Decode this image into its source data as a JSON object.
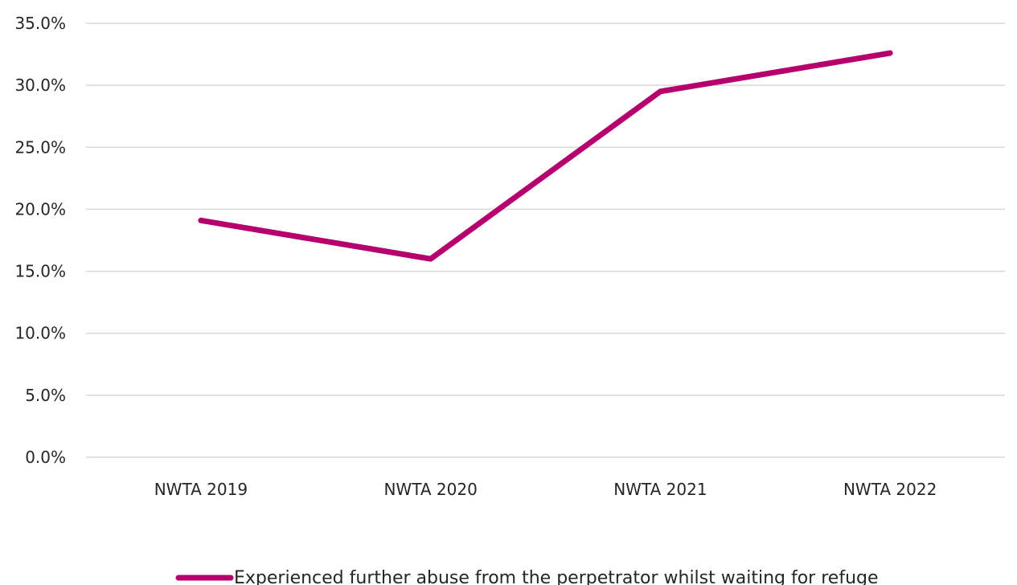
{
  "chart_data": {
    "type": "line",
    "categories": [
      "NWTA 2019",
      "NWTA 2020",
      "NWTA 2021",
      "NWTA 2022"
    ],
    "series": [
      {
        "name": "Experienced further abuse from the perpetrator whilst waiting for refuge",
        "values": [
          19.1,
          16.0,
          29.5,
          32.6
        ],
        "color": "#b5006e"
      }
    ],
    "y_ticks": [
      "0.0%",
      "5.0%",
      "10.0%",
      "15.0%",
      "20.0%",
      "25.0%",
      "30.0%",
      "35.0%"
    ],
    "ylim": [
      0,
      35
    ],
    "y_tick_step": 5,
    "grid": true,
    "legend_position": "bottom-center",
    "title": "",
    "xlabel": "",
    "ylabel": ""
  }
}
